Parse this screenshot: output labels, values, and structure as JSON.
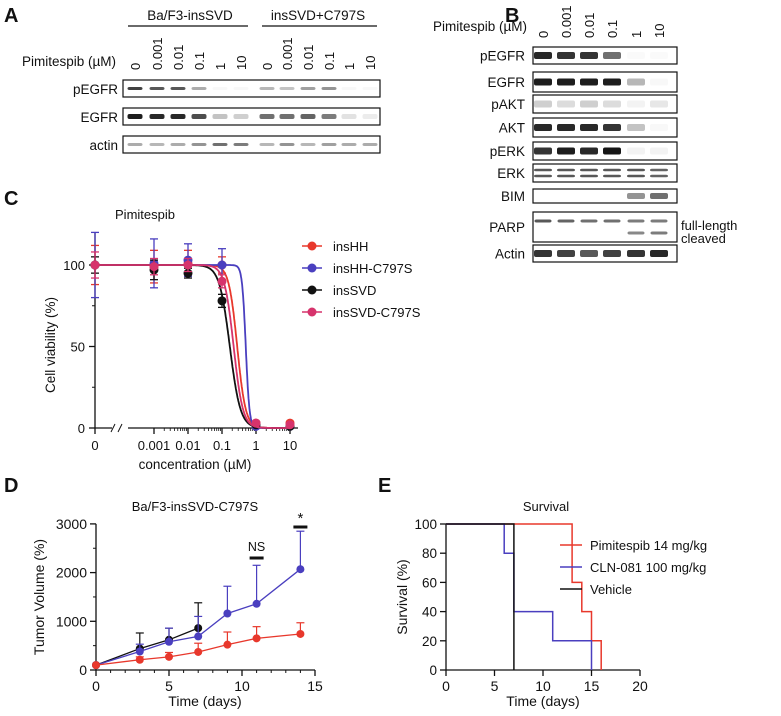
{
  "panels": {
    "A": {
      "label": "A",
      "groups": [
        "Ba/F3-insSVD",
        "insSVD+C797S"
      ],
      "treatment_label": "Pimitespib (µM)",
      "lanes": [
        "0",
        "0.001",
        "0.01",
        "0.1",
        "1",
        "10",
        "0",
        "0.001",
        "0.01",
        "0.1",
        "1",
        "10"
      ],
      "rows": [
        {
          "name": "pEGFR",
          "intensity": [
            0.8,
            0.7,
            0.7,
            0.35,
            0.03,
            0.03,
            0.3,
            0.25,
            0.4,
            0.45,
            0.03,
            0.03
          ]
        },
        {
          "name": "EGFR",
          "intensity": [
            0.95,
            0.9,
            0.9,
            0.75,
            0.25,
            0.2,
            0.6,
            0.6,
            0.65,
            0.55,
            0.12,
            0.08
          ]
        },
        {
          "name": "actin",
          "intensity": [
            0.35,
            0.3,
            0.35,
            0.45,
            0.6,
            0.55,
            0.3,
            0.45,
            0.3,
            0.4,
            0.35,
            0.35
          ]
        }
      ]
    },
    "B": {
      "label": "B",
      "treatment_label": "Pimitespib (µM)",
      "lanes": [
        "0",
        "0.001",
        "0.01",
        "0.1",
        "1",
        "10"
      ],
      "rows": [
        {
          "name": "pEGFR",
          "intensity": [
            0.9,
            0.85,
            0.85,
            0.6,
            0.02,
            0.02
          ]
        },
        {
          "name": "EGFR",
          "intensity": [
            0.95,
            0.95,
            0.95,
            0.95,
            0.3,
            0.03
          ]
        },
        {
          "name": "pAKT",
          "intensity": [
            0.2,
            0.15,
            0.2,
            0.15,
            0.05,
            0.1
          ]
        },
        {
          "name": "AKT",
          "intensity": [
            0.9,
            0.9,
            0.9,
            0.85,
            0.25,
            0.03
          ]
        },
        {
          "name": "pERK",
          "intensity": [
            0.85,
            0.95,
            0.9,
            0.98,
            0.05,
            0.05
          ]
        },
        {
          "name": "ERK",
          "intensity": [
            0.7,
            0.7,
            0.7,
            0.7,
            0.7,
            0.65
          ]
        },
        {
          "name": "BIM",
          "intensity": [
            0,
            0,
            0,
            0,
            0.45,
            0.6
          ]
        },
        {
          "name": "PARP",
          "intensity": [
            0.7,
            0.65,
            0.6,
            0.6,
            0.55,
            0.55
          ],
          "cleaved": [
            0,
            0,
            0,
            0,
            0.5,
            0.55
          ]
        },
        {
          "name": "Actin",
          "intensity": [
            0.85,
            0.8,
            0.7,
            0.8,
            0.85,
            0.9
          ]
        }
      ],
      "parp_annotations": [
        "full-length",
        "cleaved"
      ]
    },
    "C": {
      "label": "C"
    },
    "D": {
      "label": "D"
    },
    "E": {
      "label": "E"
    }
  },
  "chart_data": [
    {
      "id": "C",
      "type": "scatter",
      "title": "Pimitespib",
      "xlabel": "concentration (µM)",
      "ylabel": "Cell viability (%)",
      "xscale": "log",
      "x_ticks": [
        "0",
        "0.001",
        "0.01",
        "0.1",
        "1",
        "10"
      ],
      "x": [
        0,
        0.001,
        0.01,
        0.1,
        1,
        10
      ],
      "ylim": [
        0,
        120
      ],
      "y_ticks": [
        "0",
        "50",
        "100"
      ],
      "legend_position": "right",
      "series": [
        {
          "name": "insHH",
          "color": "#e8382c",
          "values": [
            100,
            99,
            101,
            100,
            3,
            3
          ],
          "err": [
            12,
            10,
            8,
            5,
            1,
            1
          ],
          "ic50": 0.28,
          "hill": 3.5
        },
        {
          "name": "insHH-C797S",
          "color": "#4a3fbf",
          "values": [
            100,
            101,
            103,
            100,
            1,
            1
          ],
          "err": [
            20,
            15,
            10,
            10,
            1,
            1
          ],
          "ic50": 0.5,
          "hill": 8
        },
        {
          "name": "insSVD",
          "color": "#111111",
          "values": [
            100,
            97,
            95,
            78,
            2,
            1
          ],
          "err": [
            5,
            6,
            3,
            4,
            1,
            1
          ],
          "ic50": 0.17,
          "hill": 2.8
        },
        {
          "name": "insSVD-C797S",
          "color": "#d6336c",
          "values": [
            100,
            99,
            100,
            90,
            3,
            2
          ],
          "err": [
            8,
            5,
            4,
            4,
            1,
            1
          ],
          "ic50": 0.22,
          "hill": 3.2
        }
      ]
    },
    {
      "id": "D",
      "type": "line",
      "title": "Ba/F3-insSVD-C797S",
      "xlabel": "Time (days)",
      "ylabel": "Tumor Volume (%)",
      "xlim": [
        0,
        15
      ],
      "ylim": [
        0,
        3000
      ],
      "x_ticks": [
        "0",
        "5",
        "10",
        "15"
      ],
      "y_ticks": [
        "0",
        "1000",
        "2000",
        "3000"
      ],
      "series": [
        {
          "name": "Vehicle",
          "color": "#111111",
          "x": [
            0,
            3,
            5,
            7
          ],
          "values": [
            100,
            440,
            620,
            860
          ],
          "err": [
            0,
            320,
            240,
            520
          ]
        },
        {
          "name": "CLN-081 100 mg/kg",
          "color": "#4a3fbf",
          "x": [
            0,
            3,
            5,
            7,
            9,
            11,
            14
          ],
          "values": [
            100,
            380,
            580,
            690,
            1160,
            1360,
            2070
          ],
          "err": [
            0,
            150,
            280,
            410,
            560,
            790,
            780
          ]
        },
        {
          "name": "Pimitespib 14 mg/kg",
          "color": "#e8382c",
          "x": [
            0,
            3,
            5,
            7,
            9,
            11,
            14
          ],
          "values": [
            100,
            210,
            270,
            370,
            520,
            650,
            740
          ],
          "err": [
            0,
            60,
            90,
            180,
            260,
            240,
            230
          ]
        }
      ],
      "annotations": [
        {
          "day": 11,
          "text": "NS"
        },
        {
          "day": 14,
          "text": "*"
        }
      ]
    },
    {
      "id": "E",
      "type": "line",
      "title": "Survival",
      "xlabel": "Time (days)",
      "ylabel": "Survival (%)",
      "xlim": [
        0,
        20
      ],
      "ylim": [
        0,
        100
      ],
      "x_ticks": [
        "0",
        "5",
        "10",
        "15",
        "20"
      ],
      "y_ticks": [
        "0",
        "20",
        "40",
        "60",
        "80",
        "100"
      ],
      "legend_position": "top-right",
      "series": [
        {
          "name": "Pimitespib 14 mg/kg",
          "color": "#e8382c",
          "steps": [
            [
              0,
              100
            ],
            [
              13,
              60
            ],
            [
              14,
              40
            ],
            [
              15,
              20
            ],
            [
              16,
              0
            ]
          ]
        },
        {
          "name": "CLN-081 100 mg/kg",
          "color": "#4a3fbf",
          "steps": [
            [
              0,
              100
            ],
            [
              6,
              80
            ],
            [
              7,
              40
            ],
            [
              11,
              20
            ],
            [
              15,
              0
            ]
          ]
        },
        {
          "name": "Vehicle",
          "color": "#111111",
          "steps": [
            [
              0,
              100
            ],
            [
              7,
              0
            ]
          ]
        }
      ]
    }
  ]
}
